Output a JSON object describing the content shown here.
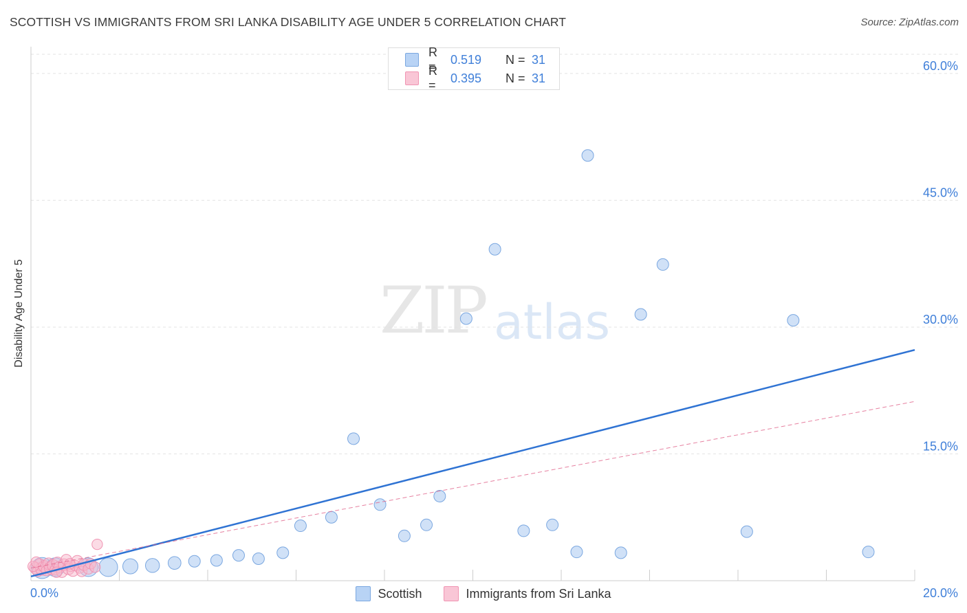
{
  "chart_data": {
    "type": "scatter",
    "title": "SCOTTISH VS IMMIGRANTS FROM SRI LANKA DISABILITY AGE UNDER 5 CORRELATION CHART",
    "source": "Source: ZipAtlas.com",
    "xlabel": "",
    "ylabel": "Disability Age Under 5",
    "xlim": [
      0,
      20
    ],
    "ylim": [
      0,
      63
    ],
    "x_tick_labels": [
      "0.0%",
      "20.0%"
    ],
    "y_ticks": [
      {
        "value": 15,
        "label": "15.0%"
      },
      {
        "value": 30,
        "label": "30.0%"
      },
      {
        "value": 45,
        "label": "45.0%"
      },
      {
        "value": 60,
        "label": "60.0%"
      }
    ],
    "watermark": {
      "part1": "ZIP",
      "part2": "atlas"
    },
    "legend_top": [
      {
        "r_label": "R =",
        "r_value": "0.519",
        "n_label": "N =",
        "n_value": "31"
      },
      {
        "r_label": "R =",
        "r_value": "0.395",
        "n_label": "N =",
        "n_value": "31"
      }
    ],
    "series": [
      {
        "name": "Scottish",
        "color": "#a9c8f0",
        "stroke": "#7aa7e0",
        "trend_color": "#2f73d3",
        "trend": {
          "x0": 0,
          "y0": 0.5,
          "x1": 20,
          "y1": 27.3
        },
        "points": [
          {
            "x": 0.25,
            "y": 1.5,
            "s": 1.8
          },
          {
            "x": 0.55,
            "y": 1.6,
            "s": 1.6
          },
          {
            "x": 1.3,
            "y": 1.6,
            "s": 1.6
          },
          {
            "x": 1.75,
            "y": 1.6,
            "s": 1.6
          },
          {
            "x": 2.25,
            "y": 1.7,
            "s": 1.3
          },
          {
            "x": 2.75,
            "y": 1.8,
            "s": 1.2
          },
          {
            "x": 3.25,
            "y": 2.1,
            "s": 1.1
          },
          {
            "x": 3.7,
            "y": 2.3,
            "s": 1.0
          },
          {
            "x": 4.2,
            "y": 2.4,
            "s": 1.0
          },
          {
            "x": 4.7,
            "y": 3.0,
            "s": 1.0
          },
          {
            "x": 5.15,
            "y": 2.6,
            "s": 1.0
          },
          {
            "x": 5.7,
            "y": 3.3,
            "s": 1.0
          },
          {
            "x": 6.1,
            "y": 6.5,
            "s": 1.0
          },
          {
            "x": 6.8,
            "y": 7.5,
            "s": 1.0
          },
          {
            "x": 7.3,
            "y": 16.8,
            "s": 1.0
          },
          {
            "x": 7.9,
            "y": 9.0,
            "s": 1.0
          },
          {
            "x": 8.45,
            "y": 5.3,
            "s": 1.0
          },
          {
            "x": 8.95,
            "y": 6.6,
            "s": 1.0
          },
          {
            "x": 9.25,
            "y": 10.0,
            "s": 1.0
          },
          {
            "x": 9.85,
            "y": 31.0,
            "s": 1.0
          },
          {
            "x": 10.5,
            "y": 39.2,
            "s": 1.0
          },
          {
            "x": 11.15,
            "y": 5.9,
            "s": 1.0
          },
          {
            "x": 11.8,
            "y": 6.6,
            "s": 1.0
          },
          {
            "x": 12.35,
            "y": 3.4,
            "s": 1.0
          },
          {
            "x": 12.6,
            "y": 50.3,
            "s": 1.0
          },
          {
            "x": 13.35,
            "y": 3.3,
            "s": 1.0
          },
          {
            "x": 13.8,
            "y": 31.5,
            "s": 1.0
          },
          {
            "x": 14.3,
            "y": 37.4,
            "s": 1.0
          },
          {
            "x": 16.2,
            "y": 5.8,
            "s": 1.0
          },
          {
            "x": 17.25,
            "y": 30.8,
            "s": 1.0
          },
          {
            "x": 18.95,
            "y": 3.4,
            "s": 1.0
          }
        ]
      },
      {
        "name": "Immigrants from Sri Lanka",
        "color": "#f7b8cb",
        "stroke": "#f093b2",
        "trend_color": "#e06088",
        "trend": {
          "x0": 0,
          "y0": 1.5,
          "x1": 20,
          "y1": 21.2
        },
        "points": [
          {
            "x": 0.1,
            "y": 1.5,
            "s": 1.0
          },
          {
            "x": 0.15,
            "y": 1.1,
            "s": 0.9
          },
          {
            "x": 0.2,
            "y": 1.9,
            "s": 1.0
          },
          {
            "x": 0.25,
            "y": 1.4,
            "s": 1.1
          },
          {
            "x": 0.3,
            "y": 1.7,
            "s": 1.0
          },
          {
            "x": 0.35,
            "y": 1.2,
            "s": 0.9
          },
          {
            "x": 0.4,
            "y": 2.0,
            "s": 1.0
          },
          {
            "x": 0.45,
            "y": 1.5,
            "s": 1.1
          },
          {
            "x": 0.5,
            "y": 1.8,
            "s": 1.0
          },
          {
            "x": 0.55,
            "y": 1.3,
            "s": 0.9
          },
          {
            "x": 0.6,
            "y": 2.1,
            "s": 1.0
          },
          {
            "x": 0.65,
            "y": 1.6,
            "s": 1.0
          },
          {
            "x": 0.7,
            "y": 1.0,
            "s": 0.9
          },
          {
            "x": 0.75,
            "y": 1.9,
            "s": 1.0
          },
          {
            "x": 0.8,
            "y": 2.5,
            "s": 0.9
          },
          {
            "x": 0.85,
            "y": 1.4,
            "s": 1.0
          },
          {
            "x": 0.9,
            "y": 1.7,
            "s": 0.9
          },
          {
            "x": 0.95,
            "y": 1.2,
            "s": 1.0
          },
          {
            "x": 1.0,
            "y": 1.8,
            "s": 0.9
          },
          {
            "x": 1.05,
            "y": 2.3,
            "s": 1.0
          },
          {
            "x": 1.1,
            "y": 1.5,
            "s": 0.9
          },
          {
            "x": 1.15,
            "y": 1.1,
            "s": 0.9
          },
          {
            "x": 1.2,
            "y": 1.9,
            "s": 1.0
          },
          {
            "x": 1.3,
            "y": 1.4,
            "s": 0.9
          },
          {
            "x": 1.35,
            "y": 2.0,
            "s": 0.9
          },
          {
            "x": 1.45,
            "y": 1.6,
            "s": 0.9
          },
          {
            "x": 1.5,
            "y": 4.3,
            "s": 0.9
          },
          {
            "x": 0.05,
            "y": 1.7,
            "s": 0.9
          },
          {
            "x": 0.12,
            "y": 2.2,
            "s": 0.9
          },
          {
            "x": 0.58,
            "y": 1.0,
            "s": 0.9
          },
          {
            "x": 0.88,
            "y": 2.0,
            "s": 0.9
          }
        ]
      }
    ]
  }
}
